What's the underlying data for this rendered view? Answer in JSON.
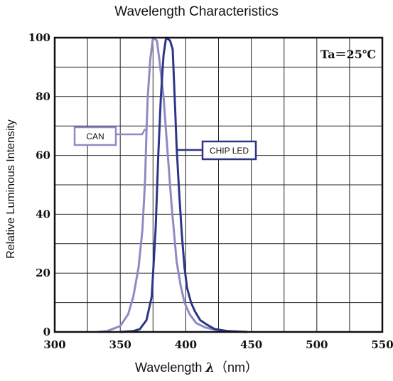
{
  "chart_data": {
    "type": "line",
    "title": "Wavelength Characteristics",
    "xlabel": {
      "prefix": "Wavelength ",
      "symbol": "λ",
      "unit": "（nm）"
    },
    "ylabel": "Relative Luminous Intensity",
    "xlim": [
      300,
      550
    ],
    "ylim": [
      0,
      100
    ],
    "xticks": [
      300,
      350,
      400,
      450,
      500,
      550
    ],
    "yticks": [
      0,
      20,
      40,
      60,
      80,
      100
    ],
    "grid": true,
    "annotation": "Ta＝25℃",
    "series": [
      {
        "name": "CAN",
        "color": "#9189c4",
        "points": [
          [
            333,
            0
          ],
          [
            340,
            0.3
          ],
          [
            350,
            2
          ],
          [
            356,
            6
          ],
          [
            360,
            12
          ],
          [
            364,
            22
          ],
          [
            367,
            35
          ],
          [
            369,
            52
          ],
          [
            370,
            68
          ],
          [
            371,
            80
          ],
          [
            373,
            93
          ],
          [
            375,
            100
          ],
          [
            378,
            99
          ],
          [
            380,
            92
          ],
          [
            383,
            80
          ],
          [
            385,
            68
          ],
          [
            387,
            56
          ],
          [
            389,
            44
          ],
          [
            391,
            34
          ],
          [
            393,
            24
          ],
          [
            396,
            16
          ],
          [
            399,
            10
          ],
          [
            403,
            6
          ],
          [
            408,
            3
          ],
          [
            415,
            1.5
          ],
          [
            425,
            0.5
          ],
          [
            440,
            0
          ]
        ]
      },
      {
        "name": "CHIP LED",
        "color": "#2d3686",
        "points": [
          [
            350,
            0
          ],
          [
            360,
            0.3
          ],
          [
            365,
            1
          ],
          [
            370,
            4
          ],
          [
            374,
            12
          ],
          [
            377,
            35
          ],
          [
            379,
            60
          ],
          [
            381,
            80
          ],
          [
            383,
            94
          ],
          [
            385,
            100
          ],
          [
            388,
            99
          ],
          [
            390,
            96
          ],
          [
            392,
            75
          ],
          [
            393,
            63
          ],
          [
            395,
            47
          ],
          [
            397,
            33
          ],
          [
            399,
            22
          ],
          [
            401,
            15
          ],
          [
            404,
            10
          ],
          [
            407,
            7
          ],
          [
            411,
            4
          ],
          [
            416,
            2.5
          ],
          [
            422,
            1
          ],
          [
            432,
            0.3
          ],
          [
            447,
            0
          ]
        ]
      }
    ],
    "labels": [
      {
        "text": "CAN",
        "series": 0,
        "anchor": [
          369,
          69
        ]
      },
      {
        "text": "CHIP LED",
        "series": 1,
        "anchor": [
          394,
          62
        ]
      }
    ]
  }
}
